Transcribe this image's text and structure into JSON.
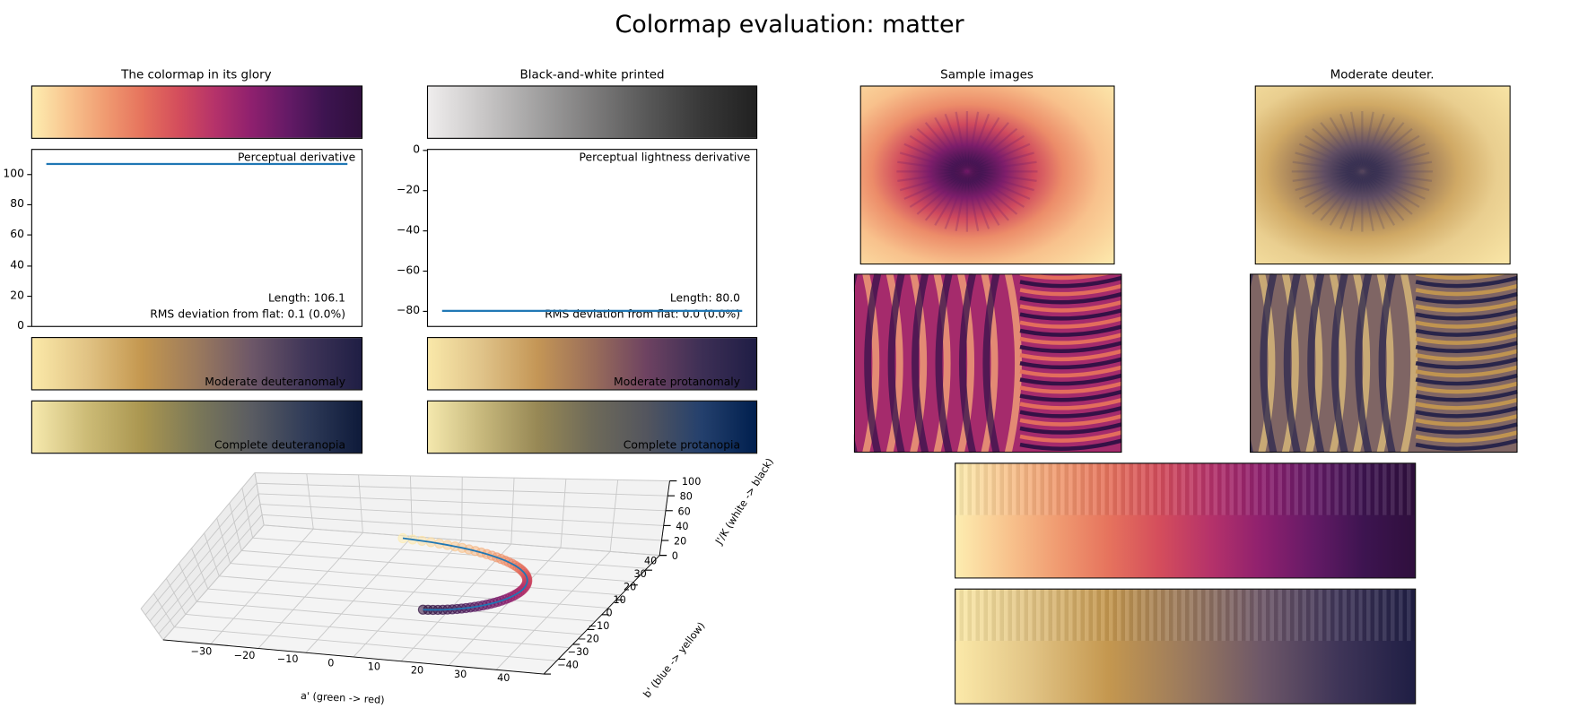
{
  "title": "Colormap evaluation: matter",
  "panels": {
    "glory": {
      "title": "The colormap in its glory"
    },
    "bw": {
      "title": "Black-and-white printed"
    },
    "samples": {
      "title": "Sample images"
    },
    "moderate_deuter": {
      "title": "Moderate deuter."
    }
  },
  "colors": {
    "matter": [
      "#fdedb0",
      "#f8c48e",
      "#f09b71",
      "#e6735d",
      "#d44d5c",
      "#b5326a",
      "#8e206e",
      "#641a66",
      "#3d1450",
      "#2f0f3d"
    ],
    "grayscale": [
      "#efeded",
      "#c9c7c7",
      "#a2a1a1",
      "#7d7c7c",
      "#585858",
      "#383838",
      "#212121"
    ],
    "moderate_deuteranomaly": [
      "#fbe9a9",
      "#e1c384",
      "#c4974f",
      "#9b7a5d",
      "#6d5768",
      "#3f3558",
      "#1f1e44"
    ],
    "complete_deuteranopia": [
      "#f6e9ae",
      "#ccbb76",
      "#aa9650",
      "#7b7858",
      "#5a5c62",
      "#2f3b58",
      "#0e1a3a"
    ],
    "moderate_protanomaly": [
      "#f9e8a9",
      "#dfc288",
      "#c49656",
      "#9a6e5a",
      "#6d4261",
      "#3d2f55",
      "#1f1d45"
    ],
    "complete_protanopia": [
      "#f4e8ad",
      "#c6b77b",
      "#978855",
      "#6e6a59",
      "#53555e",
      "#24406d",
      "#001f4e"
    ],
    "line": "#1f77b4"
  },
  "chart_data": [
    {
      "type": "line",
      "title": "Perceptual derivative",
      "ylim": [
        0,
        116
      ],
      "yticks": [
        "0",
        "20",
        "40",
        "60",
        "80",
        "100"
      ],
      "series": [
        {
          "values": [
            106.6,
            106.6
          ]
        }
      ],
      "annotations": [
        "Length: 106.1",
        "RMS deviation from flat: 0.1 (0.0%)"
      ]
    },
    {
      "type": "line",
      "title": "Perceptual lightness derivative",
      "ylim": [
        -87.6,
        0
      ],
      "yticks": [
        "0",
        "−20",
        "−40",
        "−60",
        "−80"
      ],
      "series": [
        {
          "values": [
            -80.0,
            -80.0
          ]
        }
      ],
      "annotations": [
        "Length: 80.0",
        "RMS deviation from flat: 0.0 (0.0%)"
      ]
    },
    {
      "type": "scatter",
      "projection": "3d",
      "xlabel": "a' (green -> red)",
      "ylabel": "b' (blue -> yellow)",
      "zlabel": "J'/K (white -> black)",
      "xticks": [
        "−30",
        "−20",
        "−10",
        "0",
        "10",
        "20",
        "30",
        "40"
      ],
      "yticks": [
        "−40",
        "−30",
        "−20",
        "−10",
        "0",
        "10",
        "20",
        "30",
        "40"
      ],
      "zticks": [
        "0",
        "20",
        "40",
        "60",
        "80",
        "100"
      ]
    }
  ],
  "bars": {
    "deuteranomaly": "Moderate deuteranomaly",
    "deuteranopia": "Complete deuteranopia",
    "protanomaly": "Moderate protanomaly",
    "protanopia": "Complete protanopia"
  }
}
